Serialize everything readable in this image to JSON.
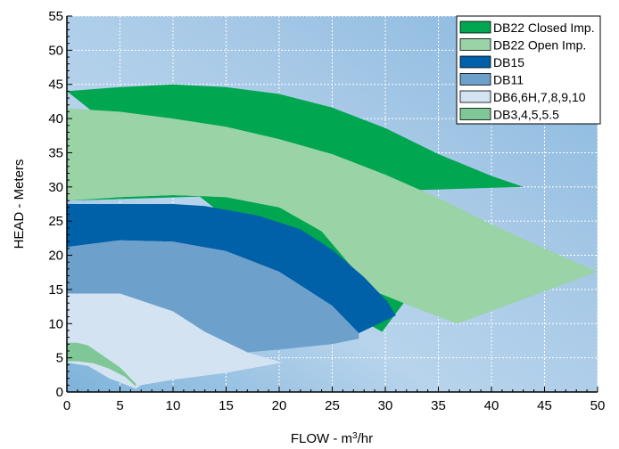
{
  "chart_data": {
    "type": "area",
    "xlabel": "FLOW - m³/hr",
    "ylabel": "HEAD - Meters",
    "xlim": [
      0,
      50
    ],
    "ylim": [
      0,
      55
    ],
    "x_ticks": [
      0,
      5,
      10,
      15,
      20,
      25,
      30,
      35,
      40,
      45,
      50
    ],
    "y_ticks": [
      0,
      5,
      10,
      15,
      20,
      25,
      30,
      35,
      40,
      45,
      50,
      55
    ],
    "grid": true,
    "legend_position": "top-right",
    "series": [
      {
        "name": "DB22 Closed Imp.",
        "color": "#00a650",
        "upper": [
          [
            0,
            44
          ],
          [
            5,
            44.6
          ],
          [
            10,
            45
          ],
          [
            15,
            44.6
          ],
          [
            20,
            43.6
          ],
          [
            25,
            41.6
          ],
          [
            30,
            38.6
          ],
          [
            35,
            34.8
          ],
          [
            40,
            31.6
          ],
          [
            43,
            30
          ]
        ],
        "lower": [
          [
            0,
            28
          ],
          [
            5,
            28.5
          ],
          [
            10,
            28.8
          ],
          [
            15,
            28.5
          ],
          [
            20,
            27
          ],
          [
            24,
            24.5
          ],
          [
            27,
            20
          ],
          [
            30,
            15.8
          ],
          [
            32,
            13.6
          ],
          [
            29.7,
            8.8
          ],
          [
            26,
            12
          ]
        ]
      },
      {
        "name": "DB22 Open Imp.",
        "color": "#99d3a6",
        "upper": [
          [
            0,
            41.5
          ],
          [
            5,
            41
          ],
          [
            10,
            40
          ],
          [
            15,
            38.8
          ],
          [
            20,
            37
          ],
          [
            25,
            34.8
          ],
          [
            30,
            31.8
          ],
          [
            35,
            28.4
          ],
          [
            40,
            24.5
          ],
          [
            45,
            21
          ],
          [
            50,
            17.6
          ]
        ],
        "lower": [
          [
            36.8,
            10
          ],
          [
            33,
            12.2
          ],
          [
            29.5,
            14.4
          ],
          [
            27,
            18
          ],
          [
            24,
            23.5
          ],
          [
            20,
            27
          ],
          [
            15,
            28.5
          ],
          [
            10,
            28.8
          ],
          [
            5,
            28.5
          ],
          [
            0,
            28
          ]
        ]
      },
      {
        "name": "DB15",
        "color": "#0060a8",
        "upper": [
          [
            0,
            27.5
          ],
          [
            5,
            27.5
          ],
          [
            10,
            27.5
          ],
          [
            13,
            27.2
          ],
          [
            18,
            25.8
          ],
          [
            22,
            23.8
          ],
          [
            25,
            20.8
          ],
          [
            28,
            16.8
          ],
          [
            30.2,
            13.2
          ],
          [
            31,
            11.2
          ]
        ],
        "lower": [
          [
            27.5,
            8.6
          ],
          [
            25,
            12.6
          ],
          [
            20,
            17.6
          ],
          [
            15,
            20.6
          ],
          [
            10,
            22
          ],
          [
            5,
            22.2
          ],
          [
            0,
            21.2
          ]
        ]
      },
      {
        "name": "DB11",
        "color": "#6ea0cc",
        "upper": [
          [
            0,
            21.2
          ],
          [
            5,
            22.2
          ],
          [
            10,
            22
          ],
          [
            15,
            20.6
          ],
          [
            20,
            17.6
          ],
          [
            25,
            12.6
          ],
          [
            27.5,
            8.6
          ]
        ],
        "lower": [
          [
            27.5,
            7.8
          ],
          [
            25,
            7
          ],
          [
            20,
            6.2
          ],
          [
            17,
            5.8
          ],
          [
            13,
            8.8
          ],
          [
            10,
            11.8
          ],
          [
            5,
            14.4
          ],
          [
            0,
            14.4
          ]
        ]
      },
      {
        "name": "DB6,6H,7,8,9,10",
        "color": "#d3e3f2",
        "upper": [
          [
            0,
            14.4
          ],
          [
            5,
            14.4
          ],
          [
            10,
            11.8
          ],
          [
            13,
            8.8
          ],
          [
            17,
            5.8
          ],
          [
            20.3,
            4.3
          ]
        ],
        "lower": [
          [
            20.3,
            4.3
          ],
          [
            15,
            2.8
          ],
          [
            10,
            1.8
          ],
          [
            7,
            1
          ],
          [
            6.5,
            0.5
          ],
          [
            4,
            2
          ],
          [
            2,
            3.8
          ],
          [
            0,
            4.3
          ]
        ]
      },
      {
        "name": "DB3,4,5,5.5",
        "color": "#7fc796",
        "upper": [
          [
            0,
            7.2
          ],
          [
            1,
            7.2
          ],
          [
            2,
            6.8
          ],
          [
            3.5,
            5.2
          ],
          [
            5,
            3.6
          ],
          [
            6.5,
            1.2
          ]
        ],
        "lower": [
          [
            6.5,
            0.8
          ],
          [
            5.5,
            2.2
          ],
          [
            4,
            3.4
          ],
          [
            2.5,
            4.2
          ],
          [
            1,
            4.5
          ],
          [
            0,
            4.5
          ]
        ]
      }
    ]
  }
}
